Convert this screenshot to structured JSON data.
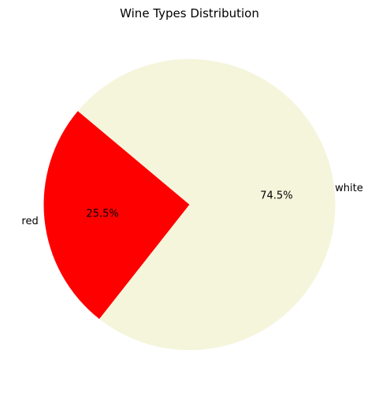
{
  "chart_data": {
    "type": "pie",
    "title": "Wine Types Distribution",
    "slices": [
      {
        "label": "red",
        "value": 25.5,
        "pct_label": "25.5%",
        "color": "#ff0000"
      },
      {
        "label": "white",
        "value": 74.5,
        "pct_label": "74.5%",
        "color": "#f5f5dc"
      }
    ],
    "start_angle_deg": 140,
    "direction": "counterclockwise"
  }
}
